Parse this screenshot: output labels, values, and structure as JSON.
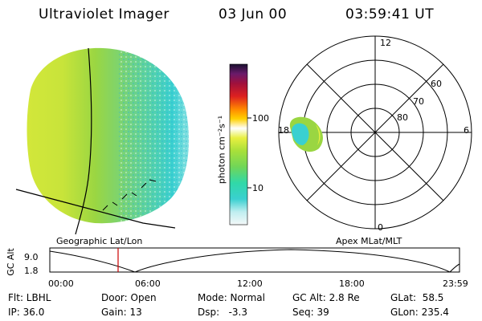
{
  "header": {
    "title": "Ultraviolet Imager",
    "date": "03 Jun 00",
    "time": "03:59:41 UT"
  },
  "colors": {
    "accent_line": "#cc0000",
    "image_dominant": "#9ad642"
  },
  "left_panel": {
    "label": "Geographic Lat/Lon"
  },
  "colorbar": {
    "unit_label": "photon cm⁻²s⁻¹",
    "tick_100": "100",
    "tick_10": "10",
    "scale": "log"
  },
  "polar_plot": {
    "label": "Apex MLat/MLT",
    "mlt_12": "12",
    "mlt_18": "18",
    "mlt_6": "6",
    "mlt_0": "0",
    "lat_60": "60",
    "lat_70": "70",
    "lat_80": "80"
  },
  "timeline": {
    "ylabel": "GC Alt",
    "y_top": "9.0",
    "y_bottom": "1.8",
    "ticks": [
      "00:00",
      "06:00",
      "12:00",
      "18:00",
      "23:59"
    ],
    "current_time_fraction": 0.1666
  },
  "info": {
    "filter": "Flt: LBHL",
    "ip": "IP: 36.0",
    "door": "Door: Open",
    "gain": "Gain: 13",
    "mode": "Mode: Normal",
    "dsp": "Dsp:   -3.3",
    "gc_alt": "GC Alt: 2.8 Re",
    "seq": "Seq: 39",
    "glat": "GLat:  58.5",
    "glon": "GLon: 235.4"
  }
}
